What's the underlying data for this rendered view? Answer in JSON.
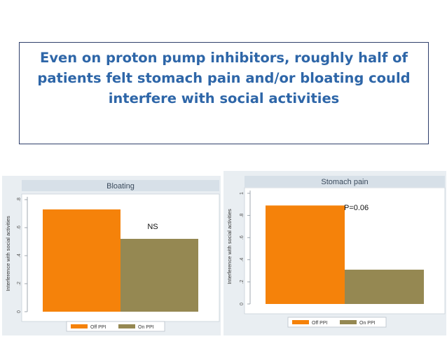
{
  "slide": {
    "title": "Even on proton pump inhibitors, roughly half of patients felt stomach pain and/or bloating could interfere with social activities"
  },
  "colors": {
    "off_ppi": "#f5820a",
    "on_ppi": "#958852",
    "title": "#2e66a8",
    "panel_bg": "#e9eef2"
  },
  "chart_data": [
    {
      "type": "bar",
      "title": "Bloating",
      "ylabel": "Interference with social activities",
      "ylim": [
        0,
        0.8
      ],
      "yticks": [
        "0",
        ".2",
        ".4",
        ".6",
        ".8"
      ],
      "series": [
        {
          "name": "Off PPI",
          "values": [
            0.73
          ]
        },
        {
          "name": "On PPI",
          "values": [
            0.52
          ]
        }
      ],
      "annotation": "NS",
      "legend": "bottom"
    },
    {
      "type": "bar",
      "title": "Stomach pain",
      "ylabel": "Interference with social activities",
      "ylim": [
        0,
        1
      ],
      "yticks": [
        "0",
        ".2",
        ".4",
        ".6",
        ".8",
        "1"
      ],
      "series": [
        {
          "name": "Off PPI",
          "values": [
            0.89
          ]
        },
        {
          "name": "On PPI",
          "values": [
            0.31
          ]
        }
      ],
      "annotation": "P=0.06",
      "legend": "bottom"
    }
  ]
}
